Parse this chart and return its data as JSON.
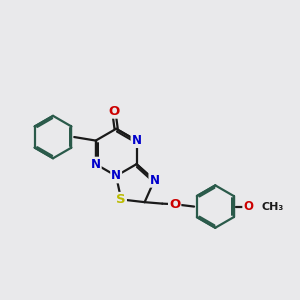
{
  "bg_color": "#e9e9eb",
  "bond_color": "#1a1a1a",
  "ring_color": "#2a5a4a",
  "N_color": "#0000cc",
  "O_color": "#cc0000",
  "S_color": "#bbbb00",
  "C_color": "#1a1a1a",
  "bond_width": 1.6,
  "font_size_atom": 8.5,
  "xlim": [
    0,
    10
  ],
  "ylim": [
    0,
    10
  ]
}
